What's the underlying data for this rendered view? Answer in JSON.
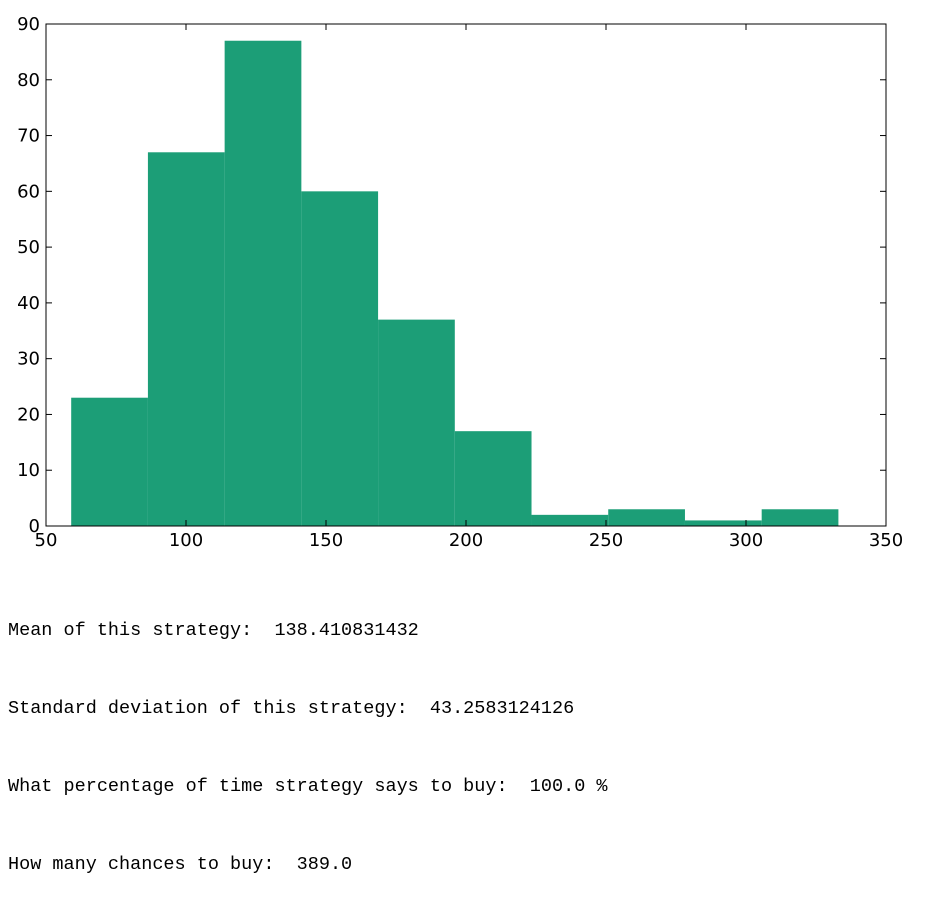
{
  "chart_data": {
    "type": "bar",
    "subtype": "histogram",
    "bar_color": "#1c9e77",
    "bins": [
      {
        "start": 59,
        "end": 86.4,
        "count": 23
      },
      {
        "start": 86.4,
        "end": 113.8,
        "count": 67
      },
      {
        "start": 113.8,
        "end": 141.2,
        "count": 87
      },
      {
        "start": 141.2,
        "end": 168.6,
        "count": 60
      },
      {
        "start": 168.6,
        "end": 196.0,
        "count": 37
      },
      {
        "start": 196.0,
        "end": 223.4,
        "count": 17
      },
      {
        "start": 223.4,
        "end": 250.8,
        "count": 2
      },
      {
        "start": 250.8,
        "end": 278.2,
        "count": 3
      },
      {
        "start": 278.2,
        "end": 305.6,
        "count": 1
      },
      {
        "start": 305.6,
        "end": 333.0,
        "count": 3
      }
    ],
    "xlim": [
      50,
      350
    ],
    "ylim": [
      0,
      90
    ],
    "xticks": [
      50,
      100,
      150,
      200,
      250,
      300,
      350
    ],
    "yticks": [
      0,
      10,
      20,
      30,
      40,
      50,
      60,
      70,
      80,
      90
    ],
    "grid": false,
    "title": "",
    "xlabel": "",
    "ylabel": ""
  },
  "output_lines": [
    "Mean of this strategy:  138.410831432",
    "Standard deviation of this strategy:  43.2583124126",
    "What percentage of time strategy says to buy:  100.0 %",
    "How many chances to buy:  389.0"
  ]
}
